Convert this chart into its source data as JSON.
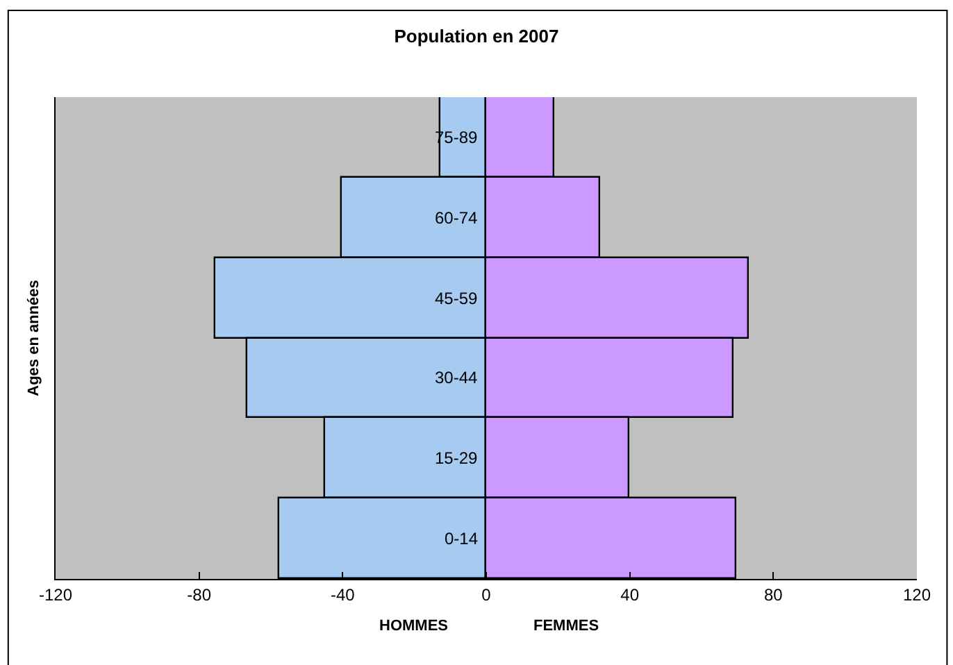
{
  "chart_data": {
    "type": "bar",
    "orientation": "horizontal",
    "stacked": true,
    "title": "Population en 2007",
    "ylabel": "Ages en années",
    "categories": [
      "75-89",
      "60-74",
      "45-59",
      "30-44",
      "15-29",
      "0-14"
    ],
    "series": [
      {
        "name": "HOMMES",
        "color": "#a6caf0",
        "values": [
          -12.6,
          -40.3,
          -75.3,
          -66.4,
          -44.8,
          -57.5
        ]
      },
      {
        "name": "FEMMES",
        "color": "#cc99ff",
        "values": [
          18.9,
          31.7,
          73,
          68.9,
          40,
          69.5
        ]
      }
    ],
    "xlim": [
      -120,
      120
    ],
    "xticks": [
      -120,
      -80,
      -40,
      0,
      40,
      80,
      120
    ],
    "grid": false,
    "legend": false
  }
}
